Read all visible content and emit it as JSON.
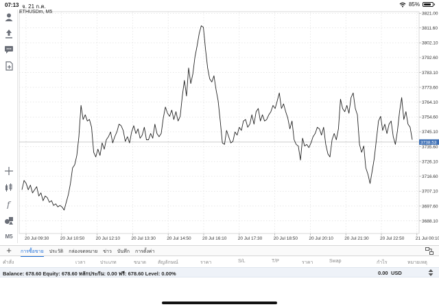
{
  "status_bar": {
    "time": "07:13",
    "date": "จ. 21 ก.ค.",
    "battery": "85%",
    "battery_level": 0.85
  },
  "toolbar": {
    "tools": [
      "user-icon",
      "trade-icon",
      "chat-icon",
      "add-document-icon",
      "crosshair-icon",
      "indicators-icon",
      "function-icon",
      "objects-icon",
      "timeframe-icon"
    ],
    "timeframe_label": "M5"
  },
  "chart": {
    "symbol_label": "ETHUSDm, M5",
    "current_price": "3738.53",
    "line_color": "#222222",
    "price_tag_color": "#3d6fb5"
  },
  "chart_data": {
    "type": "line",
    "ylim": [
      3680,
      3822
    ],
    "y_ticks": [
      "3821.00",
      "3811.60",
      "3802.10",
      "3792.60",
      "3783.10",
      "3773.60",
      "3764.10",
      "3754.60",
      "3745.10",
      "3735.60",
      "3726.10",
      "3716.60",
      "3707.10",
      "3697.60",
      "3688.10"
    ],
    "y_tick_values": [
      3821.0,
      3811.6,
      3802.1,
      3792.6,
      3783.1,
      3773.6,
      3764.1,
      3754.6,
      3745.1,
      3735.6,
      3726.1,
      3716.6,
      3707.1,
      3697.6,
      3688.1
    ],
    "x_ticks": [
      "20 Jul 09:30",
      "20 Jul 10:50",
      "20 Jul 12:10",
      "20 Jul 13:30",
      "20 Jul 14:50",
      "20 Jul 16:10",
      "20 Jul 17:30",
      "20 Jul 18:50",
      "20 Jul 20:10",
      "20 Jul 21:30",
      "20 Jul 22:50",
      "21 Jul 00:10"
    ],
    "current_price": 3738.53,
    "values": [
      3708,
      3714,
      3712,
      3708,
      3711,
      3706,
      3708,
      3710,
      3704,
      3706,
      3701,
      3704,
      3703,
      3700,
      3701,
      3698,
      3699,
      3697,
      3698,
      3697,
      3695,
      3700,
      3705,
      3712,
      3722,
      3724,
      3730,
      3742,
      3762,
      3753,
      3756,
      3752,
      3753,
      3748,
      3732,
      3729,
      3734,
      3730,
      3738,
      3734,
      3740,
      3742,
      3745,
      3738,
      3742,
      3745,
      3750,
      3749,
      3746,
      3739,
      3742,
      3738,
      3745,
      3749,
      3744,
      3747,
      3741,
      3743,
      3748,
      3740,
      3740,
      3744,
      3741,
      3750,
      3744,
      3742,
      3744,
      3754,
      3761,
      3757,
      3755,
      3759,
      3753,
      3758,
      3752,
      3755,
      3768,
      3778,
      3768,
      3786,
      3776,
      3782,
      3793,
      3800,
      3808,
      3813,
      3812,
      3798,
      3786,
      3779,
      3777,
      3781,
      3772,
      3765,
      3752,
      3738,
      3737,
      3746,
      3742,
      3738,
      3739,
      3745,
      3743,
      3748,
      3746,
      3752,
      3753,
      3748,
      3750,
      3756,
      3750,
      3758,
      3760,
      3752,
      3756,
      3752,
      3753,
      3756,
      3758,
      3762,
      3760,
      3765,
      3770,
      3760,
      3763,
      3758,
      3754,
      3747,
      3752,
      3740,
      3737,
      3736,
      3727,
      3741,
      3736,
      3737,
      3735,
      3738,
      3742,
      3744,
      3748,
      3747,
      3743,
      3748,
      3737,
      3731,
      3729,
      3740,
      3744,
      3740,
      3747,
      3766,
      3760,
      3758,
      3762,
      3757,
      3767,
      3770,
      3760,
      3756,
      3737,
      3732,
      3736,
      3722,
      3718,
      3712,
      3720,
      3728,
      3740,
      3752,
      3755,
      3746,
      3750,
      3744,
      3750,
      3752,
      3742,
      3737,
      3746,
      3758,
      3767,
      3753,
      3758,
      3750,
      3748,
      3740
    ]
  },
  "tabs": [
    {
      "label": "การซื้อขาย",
      "active": true
    },
    {
      "label": "ประวัติ",
      "active": false
    },
    {
      "label": "กล่องจดหมาย",
      "active": false
    },
    {
      "label": "ข่าว",
      "active": false
    },
    {
      "label": "บันทึก",
      "active": false
    },
    {
      "label": "การตั้งค่า",
      "active": false
    }
  ],
  "columns": [
    "คำสั่ง",
    "เวลา",
    "ประเภท",
    "ขนาด",
    "สัญลักษณ์",
    "ราคา",
    "S/L",
    "T/P",
    "ราคา",
    "Swap",
    "กำไร",
    "หมายเหตุ"
  ],
  "balance": {
    "text": "Balance: 678.60 Equity: 678.60 หลักประกัน: 0.00 ฟรี: 678.60 Level: 0.00%",
    "profit": "0.00",
    "currency": "USD"
  }
}
